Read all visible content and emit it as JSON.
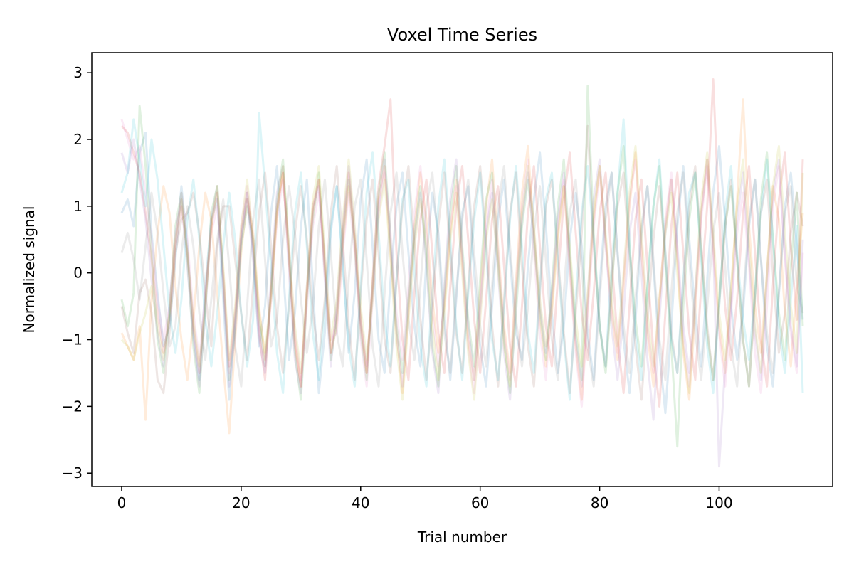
{
  "chart_data": {
    "type": "line",
    "title": "Voxel Time Series",
    "xlabel": "Trial number",
    "ylabel": "Normalized signal",
    "xlim": [
      -5,
      119
    ],
    "ylim": [
      -3.2,
      3.3
    ],
    "x_ticks": [
      0,
      20,
      40,
      60,
      80,
      100
    ],
    "x_tick_labels": [
      "0",
      "20",
      "40",
      "60",
      "80",
      "100"
    ],
    "y_ticks": [
      -3,
      -2,
      -1,
      0,
      1,
      2,
      3
    ],
    "y_tick_labels": [
      "−3",
      "−2",
      "−1",
      "0",
      "1",
      "2",
      "3"
    ],
    "grid": false,
    "legend": "none",
    "n_points": 115,
    "x_start": 0,
    "line_opacity": 0.15,
    "colors": [
      "#1f77b4",
      "#ff7f0e",
      "#2ca02c",
      "#d62728",
      "#9467bd",
      "#8c564b",
      "#e377c2",
      "#7f7f7f",
      "#bcbd22",
      "#17becf"
    ],
    "series": [
      {
        "color": "#1f77b4",
        "values": [
          0.9,
          1.1,
          0.7,
          1.8,
          2.1,
          0.6,
          -0.3,
          -1.1,
          -0.8,
          0.2,
          1.3,
          0.4,
          -0.9,
          -1.6,
          -0.2,
          0.8,
          1.1,
          -0.4,
          -1.9,
          -0.7,
          0.5,
          1.2,
          0.3,
          -1.1,
          -0.5,
          0.9,
          1.6,
          0.1,
          -1.3,
          -0.6,
          0.7,
          1.4,
          -0.2,
          -1.8,
          -0.9,
          0.6,
          1.3,
          0.2,
          -1.2,
          -0.3,
          1.1,
          1.7,
          0.4,
          -1.0,
          -1.5,
          -0.1,
          1.0,
          1.5,
          0.3,
          -0.8,
          -1.4,
          0.2,
          1.2,
          0.6,
          -0.7,
          -1.6,
          -0.4,
          0.9,
          1.3,
          0.0,
          -1.1,
          -1.7,
          -0.5,
          0.8,
          1.4,
          0.2,
          -0.9,
          -1.3,
          0.1,
          1.1,
          1.8,
          0.7,
          -0.6,
          -1.5,
          -0.8,
          0.5,
          1.2,
          0.4,
          -0.9,
          -1.6,
          -0.2,
          1.0,
          1.5,
          0.3,
          -1.0,
          -1.8,
          -0.7,
          0.6,
          1.3,
          0.1,
          -1.2,
          -2.1,
          -0.8,
          0.7,
          1.6,
          0.5,
          -0.6,
          -1.4,
          -0.1,
          1.2,
          1.9,
          0.8,
          -0.5,
          -1.3,
          -0.6,
          0.7,
          1.4,
          0.2,
          -1.1,
          -1.7,
          -0.3,
          1.0,
          1.5,
          0.4,
          -0.7
        ]
      },
      {
        "color": "#ff7f0e",
        "values": [
          -0.9,
          -1.1,
          -1.3,
          -0.8,
          -2.2,
          -0.4,
          0.6,
          1.3,
          0.9,
          -0.2,
          -1.0,
          -1.6,
          -0.7,
          0.4,
          1.2,
          0.8,
          -0.3,
          -1.4,
          -2.4,
          -1.0,
          0.3,
          1.1,
          0.6,
          -0.5,
          -1.3,
          -0.4,
          0.9,
          1.5,
          0.2,
          -1.0,
          -1.7,
          -0.3,
          1.0,
          1.4,
          0.1,
          -1.2,
          -0.8,
          0.4,
          1.3,
          0.5,
          -0.7,
          -1.5,
          -0.2,
          1.1,
          1.6,
          0.3,
          -0.9,
          -1.8,
          -0.6,
          0.7,
          1.5,
          0.8,
          -0.4,
          -1.2,
          -0.5,
          0.6,
          1.4,
          0.2,
          -1.0,
          -1.6,
          -0.3,
          1.0,
          1.7,
          0.4,
          -0.8,
          -1.5,
          -0.1,
          1.2,
          1.9,
          0.6,
          -0.7,
          -1.4,
          -0.6,
          0.5,
          1.3,
          0.1,
          -1.1,
          -1.9,
          -0.5,
          0.8,
          1.6,
          0.5,
          -0.6,
          -1.3,
          -0.2,
          1.0,
          1.8,
          0.3,
          -0.9,
          -1.7,
          -0.4,
          0.7,
          1.4,
          0.2,
          -1.2,
          -1.9,
          -0.6,
          0.9,
          1.7,
          0.4,
          -0.8,
          -1.5,
          -0.3,
          1.1,
          2.6,
          0.7,
          -0.5,
          -1.2,
          0.0,
          1.3,
          0.8,
          -0.6,
          -1.4,
          -0.2,
          0.9
        ]
      },
      {
        "color": "#2ca02c",
        "values": [
          -0.4,
          -0.8,
          -0.3,
          2.5,
          1.6,
          0.3,
          -1.0,
          -1.5,
          -0.6,
          0.7,
          1.2,
          0.2,
          -1.1,
          -1.8,
          -0.5,
          0.9,
          1.3,
          -0.1,
          -1.6,
          -0.8,
          0.4,
          1.0,
          0.5,
          -0.7,
          -1.4,
          -0.3,
          1.1,
          1.7,
          0.3,
          -1.2,
          -1.9,
          -0.4,
          0.8,
          1.5,
          0.1,
          -1.3,
          -0.7,
          0.5,
          1.4,
          0.4,
          -0.9,
          -1.6,
          -0.2,
          1.2,
          1.8,
          0.5,
          -0.8,
          -1.5,
          -0.4,
          0.6,
          1.3,
          0.2,
          -1.1,
          -1.7,
          -0.3,
          0.9,
          1.6,
          0.4,
          -0.7,
          -1.4,
          -0.1,
          1.1,
          1.5,
          0.2,
          -1.0,
          -1.8,
          -0.6,
          0.7,
          1.4,
          0.5,
          -0.6,
          -1.3,
          -0.2,
          1.0,
          1.7,
          0.3,
          -0.9,
          -1.6,
          2.8,
          0.6,
          -0.8,
          -1.5,
          -0.3,
          1.2,
          1.9,
          0.4,
          -0.7,
          -1.4,
          -0.2,
          1.0,
          1.6,
          0.1,
          -1.1,
          -2.6,
          -0.5,
          0.8,
          1.5,
          0.3,
          -0.9,
          -1.6,
          -0.4,
          0.7,
          1.3,
          0.2,
          -1.0,
          -1.7,
          -0.3,
          1.1,
          1.8,
          0.5,
          -0.6,
          -1.3,
          0.1,
          1.2,
          -0.8
        ]
      },
      {
        "color": "#d62728",
        "values": [
          2.2,
          2.1,
          1.8,
          1.5,
          0.9,
          0.2,
          -0.6,
          -1.2,
          -0.7,
          0.4,
          1.0,
          0.3,
          -0.8,
          -1.5,
          -0.4,
          0.7,
          1.2,
          0.0,
          -1.4,
          -0.6,
          0.6,
          1.2,
          0.4,
          -0.9,
          -1.6,
          -0.2,
          1.0,
          1.5,
          0.2,
          -1.1,
          -1.7,
          -0.3,
          0.9,
          1.4,
          0.0,
          -1.2,
          -0.6,
          0.6,
          1.5,
          0.5,
          -0.8,
          -1.5,
          -0.1,
          1.3,
          1.9,
          2.6,
          0.3,
          -1.0,
          -1.6,
          -0.3,
          0.8,
          1.4,
          0.3,
          -0.9,
          -1.5,
          -0.2,
          1.0,
          1.6,
          0.5,
          -0.7,
          -1.5,
          -0.4,
          0.8,
          1.3,
          0.1,
          -1.1,
          -1.7,
          -0.5,
          0.9,
          1.6,
          0.4,
          -0.8,
          -1.4,
          -0.1,
          1.1,
          1.8,
          0.6,
          -0.6,
          -1.3,
          -0.3,
          0.9,
          1.5,
          0.2,
          -1.0,
          -1.8,
          -0.5,
          0.8,
          1.4,
          0.1,
          -1.2,
          -2.0,
          -0.6,
          0.7,
          1.5,
          0.3,
          -0.9,
          -1.6,
          -0.2,
          1.0,
          2.9,
          0.8,
          -0.5,
          -1.3,
          -0.4,
          0.9,
          1.6,
          0.3,
          -1.0,
          -1.7,
          -0.2,
          1.1,
          1.8,
          0.4,
          -0.7,
          1.7
        ]
      },
      {
        "color": "#9467bd",
        "values": [
          1.8,
          1.5,
          2.0,
          1.4,
          0.8,
          -0.1,
          -0.9,
          -1.4,
          -0.5,
          0.6,
          1.1,
          0.1,
          -1.0,
          -1.7,
          -0.6,
          0.8,
          1.3,
          -0.2,
          -1.7,
          -0.9,
          0.5,
          1.1,
          0.2,
          -1.0,
          -1.5,
          -0.1,
          1.2,
          1.6,
          0.0,
          -1.3,
          -1.8,
          -0.2,
          1.0,
          1.3,
          -0.1,
          -1.4,
          -0.5,
          0.7,
          1.6,
          0.6,
          -0.7,
          -1.4,
          -0.3,
          1.0,
          1.7,
          0.4,
          -0.9,
          -1.7,
          -0.5,
          0.5,
          1.2,
          0.1,
          -1.2,
          -1.8,
          -0.2,
          1.1,
          1.7,
          0.3,
          -0.8,
          -1.6,
          -0.5,
          0.6,
          1.2,
          0.0,
          -1.2,
          -1.9,
          -0.4,
          0.8,
          1.5,
          0.6,
          -0.5,
          -1.2,
          -0.3,
          0.8,
          1.5,
          0.2,
          -1.0,
          -1.7,
          -0.4,
          1.1,
          1.7,
          0.5,
          -0.8,
          -1.6,
          -0.6,
          0.6,
          1.2,
          0.0,
          -1.3,
          -2.2,
          -0.7,
          0.6,
          1.4,
          0.4,
          -0.8,
          -1.5,
          -0.3,
          0.9,
          1.7,
          0.5,
          -2.9,
          -1.4,
          -0.5,
          0.8,
          1.5,
          0.2,
          -0.9,
          -1.6,
          -0.1,
          1.2,
          1.7,
          0.3,
          -0.8,
          -1.4,
          0.5
        ]
      },
      {
        "color": "#8c564b",
        "values": [
          -0.5,
          -0.9,
          -1.2,
          -0.3,
          -0.1,
          -0.6,
          -1.6,
          -1.8,
          -0.9,
          0.3,
          0.8,
          0.9,
          1.2,
          0.6,
          -0.3,
          -1.1,
          0.4,
          1.0,
          1.0,
          0.2,
          -0.6,
          -1.3,
          -0.2,
          0.9,
          1.5,
          0.4,
          -0.8,
          -1.5,
          -0.5,
          0.6,
          1.3,
          0.5,
          -0.6,
          -1.3,
          -0.4,
          0.9,
          1.6,
          0.5,
          -0.8,
          -1.6,
          -0.3,
          0.8,
          1.4,
          0.3,
          -1.0,
          -1.5,
          -0.1,
          1.0,
          1.6,
          0.4,
          -0.7,
          -1.6,
          -0.6,
          0.7,
          1.5,
          0.3,
          -0.9,
          -1.5,
          -0.2,
          1.0,
          1.6,
          0.5,
          -0.8,
          -1.7,
          -0.4,
          0.9,
          1.5,
          0.1,
          -1.1,
          -1.7,
          -0.3,
          1.0,
          1.4,
          0.3,
          -0.9,
          -1.8,
          -0.6,
          0.6,
          2.2,
          0.4,
          -0.8,
          -1.4,
          -0.2,
          1.0,
          1.5,
          0.2,
          -1.1,
          -1.9,
          -0.7,
          0.5,
          1.3,
          0.3,
          -0.9,
          -1.5,
          -0.2,
          1.0,
          1.6,
          0.4,
          -0.8,
          -1.6,
          -0.5,
          0.7,
          1.4,
          0.2,
          -1.0,
          -1.7,
          -0.4,
          0.9,
          1.4,
          0.0,
          -1.2,
          -0.6,
          0.6,
          1.2,
          0.7
        ]
      },
      {
        "color": "#e377c2",
        "values": [
          2.3,
          2.0,
          1.7,
          1.9,
          1.2,
          0.5,
          -0.4,
          -1.0,
          -0.5,
          0.5,
          1.2,
          0.5,
          -0.6,
          -1.3,
          -0.3,
          0.6,
          1.0,
          -0.1,
          -1.5,
          -0.7,
          0.7,
          1.3,
          0.5,
          -0.8,
          -1.4,
          -0.4,
          0.8,
          1.4,
          0.4,
          -0.9,
          -1.6,
          -0.5,
          0.7,
          1.2,
          0.2,
          -1.0,
          -0.9,
          0.3,
          1.2,
          0.3,
          -1.0,
          -1.7,
          -0.4,
          0.9,
          1.5,
          0.6,
          -0.6,
          -1.3,
          -0.2,
          0.9,
          1.6,
          0.6,
          -0.6,
          -1.4,
          -0.4,
          0.7,
          1.3,
          0.1,
          -1.1,
          -1.8,
          -0.6,
          0.7,
          1.4,
          0.3,
          -0.9,
          -1.6,
          -0.2,
          1.0,
          1.7,
          0.3,
          -0.9,
          -1.6,
          -0.4,
          0.7,
          1.4,
          0.0,
          -1.2,
          -2.0,
          -0.6,
          0.7,
          1.5,
          0.4,
          -0.5,
          -1.2,
          -0.1,
          1.1,
          1.7,
          0.4,
          -0.8,
          -1.5,
          -0.5,
          0.8,
          1.5,
          0.3,
          -1.0,
          -1.7,
          -0.4,
          0.8,
          1.6,
          0.3,
          -0.9,
          -1.7,
          -0.6,
          0.6,
          1.2,
          0.1,
          -1.2,
          -1.8,
          -0.5,
          1.0,
          1.6,
          0.2,
          -0.9,
          -1.5,
          0.3
        ]
      },
      {
        "color": "#7f7f7f",
        "values": [
          0.3,
          0.6,
          0.2,
          -0.4,
          0.4,
          1.2,
          0.6,
          -0.3,
          -1.1,
          -0.8,
          0.3,
          1.0,
          0.4,
          -0.6,
          -1.3,
          -0.4,
          0.5,
          1.1,
          0.1,
          -1.1,
          -1.7,
          -0.5,
          0.8,
          1.4,
          0.2,
          -1.1,
          -0.7,
          0.5,
          1.3,
          0.6,
          -0.4,
          -1.2,
          -0.5,
          0.7,
          1.4,
          0.3,
          -0.9,
          -1.4,
          -0.1,
          1.0,
          1.4,
          0.2,
          -1.1,
          -1.7,
          -0.3,
          0.9,
          1.5,
          0.3,
          -0.7,
          -1.3,
          -0.2,
          1.0,
          1.5,
          0.4,
          -0.9,
          -1.5,
          -0.3,
          0.8,
          1.4,
          0.3,
          -0.8,
          -1.4,
          -0.2,
          1.0,
          1.6,
          0.4,
          -0.7,
          -1.4,
          -0.5,
          0.6,
          1.3,
          0.2,
          -1.0,
          -1.6,
          -0.3,
          0.9,
          1.4,
          0.1,
          -1.1,
          -1.7,
          -0.4,
          0.8,
          1.5,
          0.3,
          -0.8,
          -1.5,
          -0.4,
          0.7,
          1.3,
          0.2,
          -1.0,
          -1.6,
          -0.3,
          0.9,
          1.5,
          0.2,
          -0.9,
          -1.6,
          -0.5,
          0.6,
          1.2,
          0.1,
          -1.1,
          -1.7,
          -0.4,
          0.8,
          1.4,
          0.2,
          -0.9,
          -1.5,
          -0.3,
          0.9,
          1.3,
          -0.2,
          -0.6
        ]
      },
      {
        "color": "#bcbd22",
        "values": [
          -1.0,
          -1.1,
          -1.3,
          -0.9,
          -0.6,
          -0.2,
          -0.8,
          -1.3,
          -0.6,
          0.5,
          1.1,
          0.3,
          -0.7,
          -1.4,
          -0.5,
          0.7,
          1.3,
          0.1,
          -1.3,
          -0.5,
          0.7,
          1.4,
          0.5,
          -0.6,
          -1.2,
          -0.3,
          0.9,
          1.6,
          0.4,
          -0.8,
          -1.5,
          -0.2,
          1.1,
          1.6,
          0.3,
          -1.0,
          -0.4,
          0.8,
          1.7,
          0.7,
          -0.5,
          -1.3,
          -0.4,
          0.8,
          1.4,
          0.2,
          -1.1,
          -1.9,
          -0.7,
          0.4,
          1.1,
          0.4,
          -0.8,
          -1.6,
          -0.6,
          0.5,
          1.2,
          0.0,
          -1.2,
          -1.9,
          -0.7,
          0.5,
          1.1,
          0.1,
          -1.1,
          -1.7,
          -0.3,
          0.9,
          1.6,
          0.7,
          -0.4,
          -1.1,
          -0.5,
          0.6,
          1.3,
          0.4,
          -0.7,
          -1.4,
          -0.3,
          0.9,
          1.6,
          0.6,
          -0.4,
          -1.1,
          0.0,
          1.2,
          1.9,
          0.6,
          -0.6,
          -1.4,
          -0.4,
          0.6,
          1.2,
          0.0,
          -1.1,
          -1.8,
          -0.3,
          1.1,
          1.8,
          0.6,
          -0.6,
          -1.3,
          -0.2,
          1.0,
          1.7,
          0.4,
          -0.8,
          -1.5,
          0.0,
          1.3,
          1.9,
          0.6,
          -0.5,
          -1.2,
          1.5
        ]
      },
      {
        "color": "#17becf",
        "values": [
          1.2,
          1.5,
          2.3,
          1.7,
          1.0,
          2.0,
          1.4,
          0.4,
          -0.6,
          -1.2,
          -0.4,
          0.8,
          1.4,
          0.5,
          -0.7,
          -1.4,
          -0.6,
          0.4,
          1.2,
          0.5,
          -0.6,
          -1.4,
          -0.7,
          2.4,
          1.3,
          0.1,
          -1.2,
          -1.8,
          -0.4,
          0.9,
          1.5,
          0.4,
          -0.9,
          -1.6,
          -0.5,
          0.7,
          1.3,
          0.1,
          -1.1,
          -1.7,
          -0.2,
          1.2,
          1.8,
          0.6,
          -0.7,
          -1.4,
          -0.1,
          1.1,
          1.4,
          0.0,
          -1.1,
          -1.7,
          -0.3,
          1.0,
          1.7,
          0.5,
          -0.8,
          -1.6,
          -0.3,
          0.8,
          1.5,
          0.3,
          -1.0,
          -1.6,
          -0.5,
          0.8,
          1.6,
          0.4,
          -0.9,
          -1.5,
          -0.2,
          1.1,
          1.5,
          0.2,
          -1.0,
          -1.9,
          -0.4,
          0.9,
          1.6,
          0.5,
          -0.8,
          -1.4,
          0.1,
          1.2,
          2.3,
          0.4,
          -0.9,
          -1.6,
          -0.2,
          1.0,
          1.7,
          0.3,
          -1.0,
          -1.5,
          -0.1,
          1.2,
          1.5,
          0.2,
          -1.1,
          -1.8,
          -0.5,
          0.9,
          1.6,
          0.3,
          -0.7,
          -1.3,
          -0.3,
          0.9,
          1.7,
          0.5,
          -0.8,
          -1.5,
          -0.4,
          0.7,
          -1.8
        ]
      }
    ]
  }
}
